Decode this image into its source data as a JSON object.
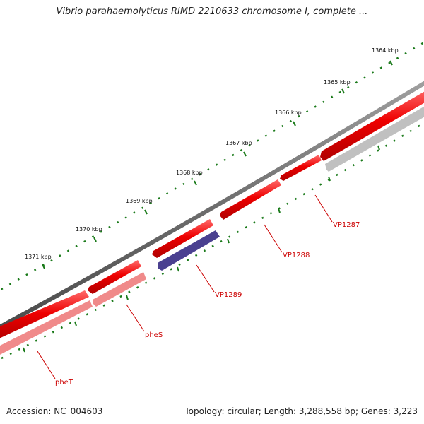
{
  "title": "Vibrio parahaemolyticus RIMD 2210633 chromosome I, complete ...",
  "footer": {
    "accession": "Accession: NC_004603",
    "stats": "Topology: circular; Length: 3,288,558 bp; Genes: 3,223"
  },
  "ruler_labels": [
    "1364 kbp",
    "1365 kbp",
    "1366 kbp",
    "1367 kbp",
    "1368 kbp",
    "1369 kbp",
    "1370 kbp",
    "1371 kbp"
  ],
  "gene_labels": [
    "VP1287",
    "VP1288",
    "VP1289",
    "pheS",
    "pheT"
  ],
  "colors": {
    "backbone": "#7a7a7a",
    "forward_gene": "#ee0000",
    "reverse_gene_light": "#f08a8a",
    "reverse_gene_gray": "#c0c0c0",
    "reverse_gene_blue": "#4a4090",
    "tick": "#1a7a1a",
    "label_line": "#cc0000"
  }
}
